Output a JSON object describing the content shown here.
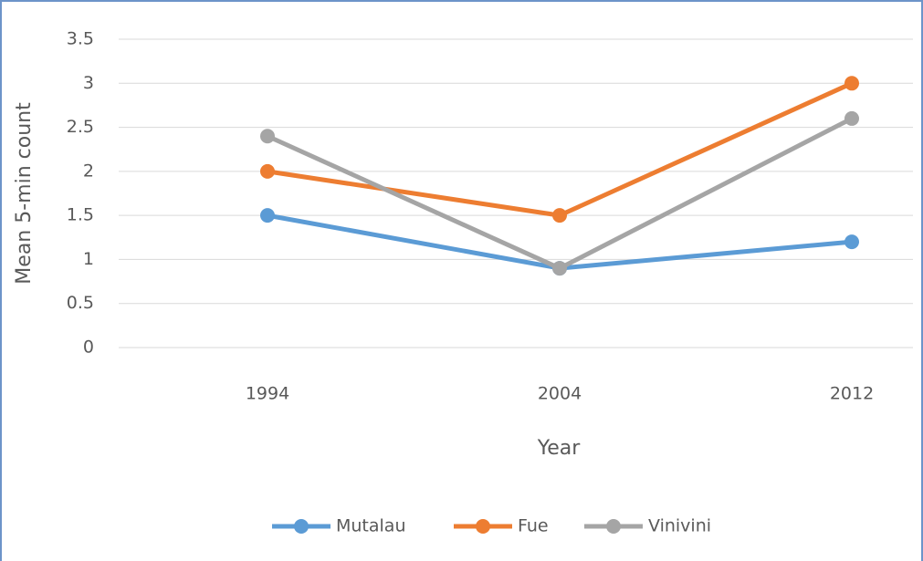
{
  "chart_data": {
    "type": "line",
    "x_label": "Year",
    "y_label": "Mean 5-min count",
    "categories": [
      "1994",
      "2004",
      "2012"
    ],
    "series": [
      {
        "name": "Mutalau",
        "color": "#5b9bd5",
        "values": [
          1.5,
          0.9,
          1.2
        ]
      },
      {
        "name": "Fue",
        "color": "#ed7d31",
        "values": [
          2,
          1.5,
          3
        ]
      },
      {
        "name": "Vinivini",
        "color": "#a5a5a5",
        "values": [
          2.4,
          0.9,
          2.6
        ]
      }
    ],
    "ylim": [
      0,
      3.5
    ],
    "yticks": [
      0,
      0.5,
      1,
      1.5,
      2,
      2.5,
      3,
      3.5
    ],
    "grid": true,
    "legend": "bottom"
  }
}
